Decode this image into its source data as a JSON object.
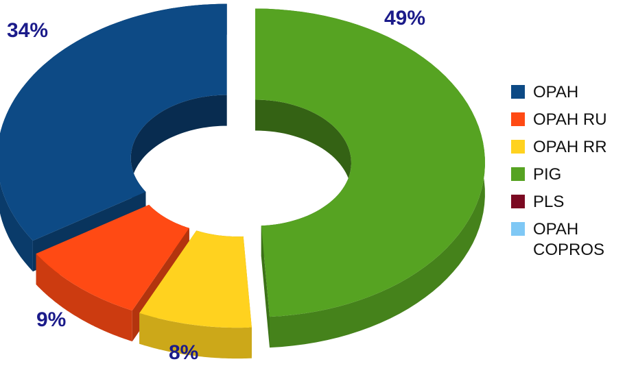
{
  "chart_data": {
    "type": "pie",
    "style": "3d-exploded-donut",
    "title": "",
    "legend_position": "right",
    "slices": [
      {
        "label": "OPAH",
        "value": 34,
        "display": "34%",
        "color": "#0d4a85"
      },
      {
        "label": "OPAH RU",
        "value": 9,
        "display": "9%",
        "color": "#ff4a14"
      },
      {
        "label": "OPAH RR",
        "value": 8,
        "display": "8%",
        "color": "#ffd21f"
      },
      {
        "label": "PIG",
        "value": 49,
        "display": "49%",
        "color": "#56a322"
      },
      {
        "label": "PLS",
        "value": 0,
        "display": "",
        "color": "#7b0a22"
      },
      {
        "label": "OPAH COPROS",
        "value": 0,
        "display": "",
        "color": "#7fc8f5"
      }
    ]
  }
}
